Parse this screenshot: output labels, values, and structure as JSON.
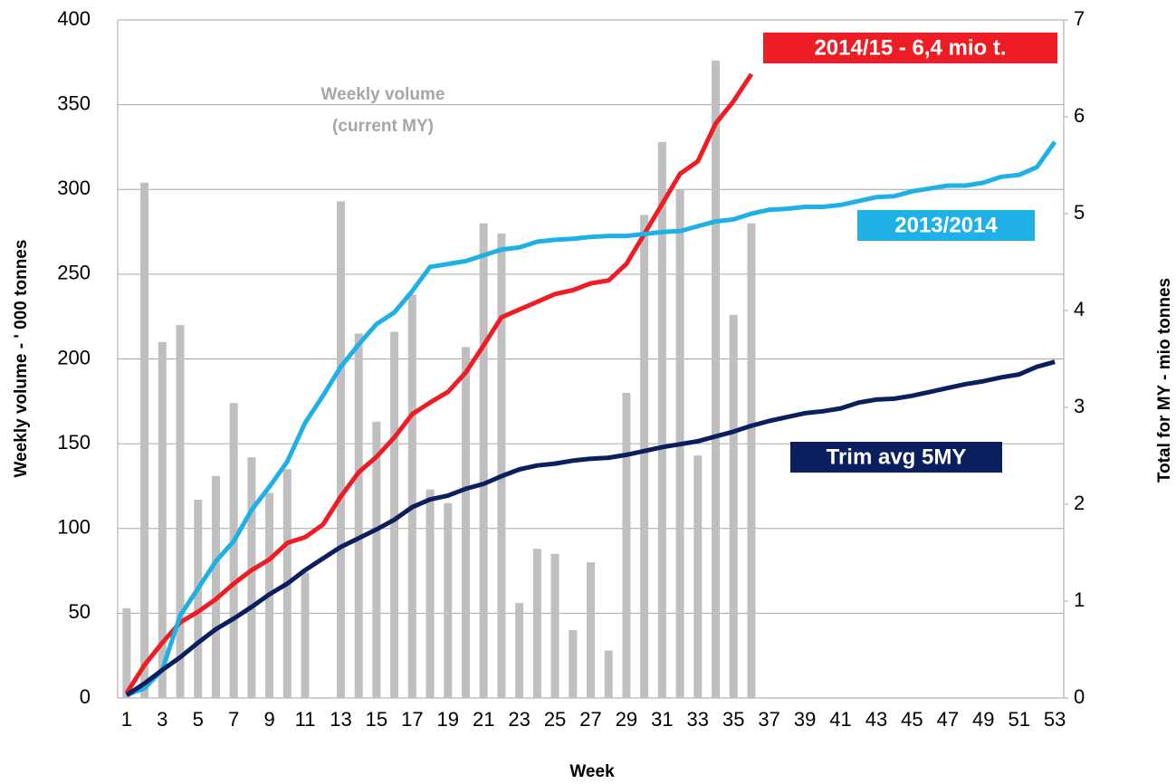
{
  "chart_data": {
    "type": "bar-line",
    "xlabel": "Week",
    "ylabel": "Weekly volume  - ' 000 tonnes",
    "y2label": "Total for MY - mio tonnes",
    "annotations": [
      "Weekly volume",
      "(current MY)"
    ],
    "categories": [
      "1",
      null,
      "3",
      null,
      "5",
      null,
      "7",
      null,
      "9",
      null,
      "11",
      null,
      "13",
      null,
      "15",
      null,
      "17",
      null,
      "19",
      null,
      "21",
      null,
      "23",
      null,
      "25",
      null,
      "27",
      null,
      "29",
      null,
      "31",
      null,
      "33",
      null,
      "35",
      null,
      "37",
      null,
      "39",
      null,
      "41",
      null,
      "43",
      null,
      "45",
      null,
      "47",
      null,
      "49",
      null,
      "51",
      null,
      "53"
    ],
    "ylim": [
      0,
      400
    ],
    "yticks": [
      0,
      50,
      100,
      150,
      200,
      250,
      300,
      350,
      400
    ],
    "y2lim": [
      0,
      7
    ],
    "y2ticks": [
      0,
      1,
      2,
      3,
      4,
      5,
      6,
      7
    ],
    "grid": true,
    "series": [
      {
        "type": "bar",
        "color": "#bfbfbf",
        "values": [
          53,
          304,
          210,
          220,
          117,
          131,
          174,
          142,
          121,
          135,
          74,
          0,
          293,
          215,
          163,
          216,
          238,
          123,
          115,
          207,
          280,
          274,
          56,
          88,
          85,
          40,
          80,
          28,
          180,
          285,
          328,
          300,
          143,
          376,
          226,
          280,
          null,
          null,
          null,
          null,
          null,
          null,
          null,
          null,
          null,
          null,
          null,
          null,
          null,
          null,
          null,
          null,
          null
        ]
      },
      {
        "type": "line",
        "axis": "y2",
        "name": "2014/15 - 6,4 mio t.",
        "color": "#ee1c25",
        "values": [
          0.05,
          0.34,
          0.57,
          0.78,
          0.89,
          1.02,
          1.18,
          1.32,
          1.43,
          1.6,
          1.66,
          1.79,
          2.08,
          2.33,
          2.49,
          2.69,
          2.93,
          3.05,
          3.16,
          3.36,
          3.64,
          3.93,
          4.01,
          4.09,
          4.17,
          4.21,
          4.28,
          4.31,
          4.48,
          4.79,
          5.1,
          5.41,
          5.54,
          5.93,
          6.16,
          6.44,
          null,
          null,
          null,
          null,
          null,
          null,
          null,
          null,
          null,
          null,
          null,
          null,
          null,
          null,
          null,
          null,
          null
        ]
      },
      {
        "type": "line",
        "axis": "y2",
        "name": "2013/2014",
        "color": "#1fb0e6",
        "values": [
          0.03,
          0.1,
          0.29,
          0.85,
          1.13,
          1.41,
          1.62,
          1.94,
          2.18,
          2.44,
          2.84,
          3.12,
          3.42,
          3.65,
          3.86,
          3.98,
          4.2,
          4.45,
          4.48,
          4.51,
          4.57,
          4.63,
          4.65,
          4.71,
          4.73,
          4.74,
          4.76,
          4.77,
          4.77,
          4.79,
          4.81,
          4.82,
          4.87,
          4.92,
          4.94,
          5.0,
          5.04,
          5.05,
          5.07,
          5.07,
          5.09,
          5.13,
          5.17,
          5.18,
          5.23,
          5.26,
          5.29,
          5.29,
          5.32,
          5.38,
          5.4,
          5.48,
          5.74
        ]
      },
      {
        "type": "line",
        "axis": "y2",
        "name": "Trim avg 5MY",
        "color": "#0b1f5e",
        "values": [
          0.03,
          0.15,
          0.29,
          0.42,
          0.57,
          0.71,
          0.82,
          0.94,
          1.07,
          1.18,
          1.32,
          1.44,
          1.56,
          1.65,
          1.74,
          1.84,
          1.97,
          2.05,
          2.09,
          2.16,
          2.21,
          2.29,
          2.36,
          2.4,
          2.42,
          2.45,
          2.47,
          2.48,
          2.51,
          2.55,
          2.59,
          2.62,
          2.65,
          2.7,
          2.75,
          2.81,
          2.86,
          2.9,
          2.94,
          2.96,
          2.99,
          3.05,
          3.08,
          3.09,
          3.12,
          3.16,
          3.2,
          3.24,
          3.27,
          3.31,
          3.34,
          3.42,
          3.47
        ]
      }
    ]
  }
}
